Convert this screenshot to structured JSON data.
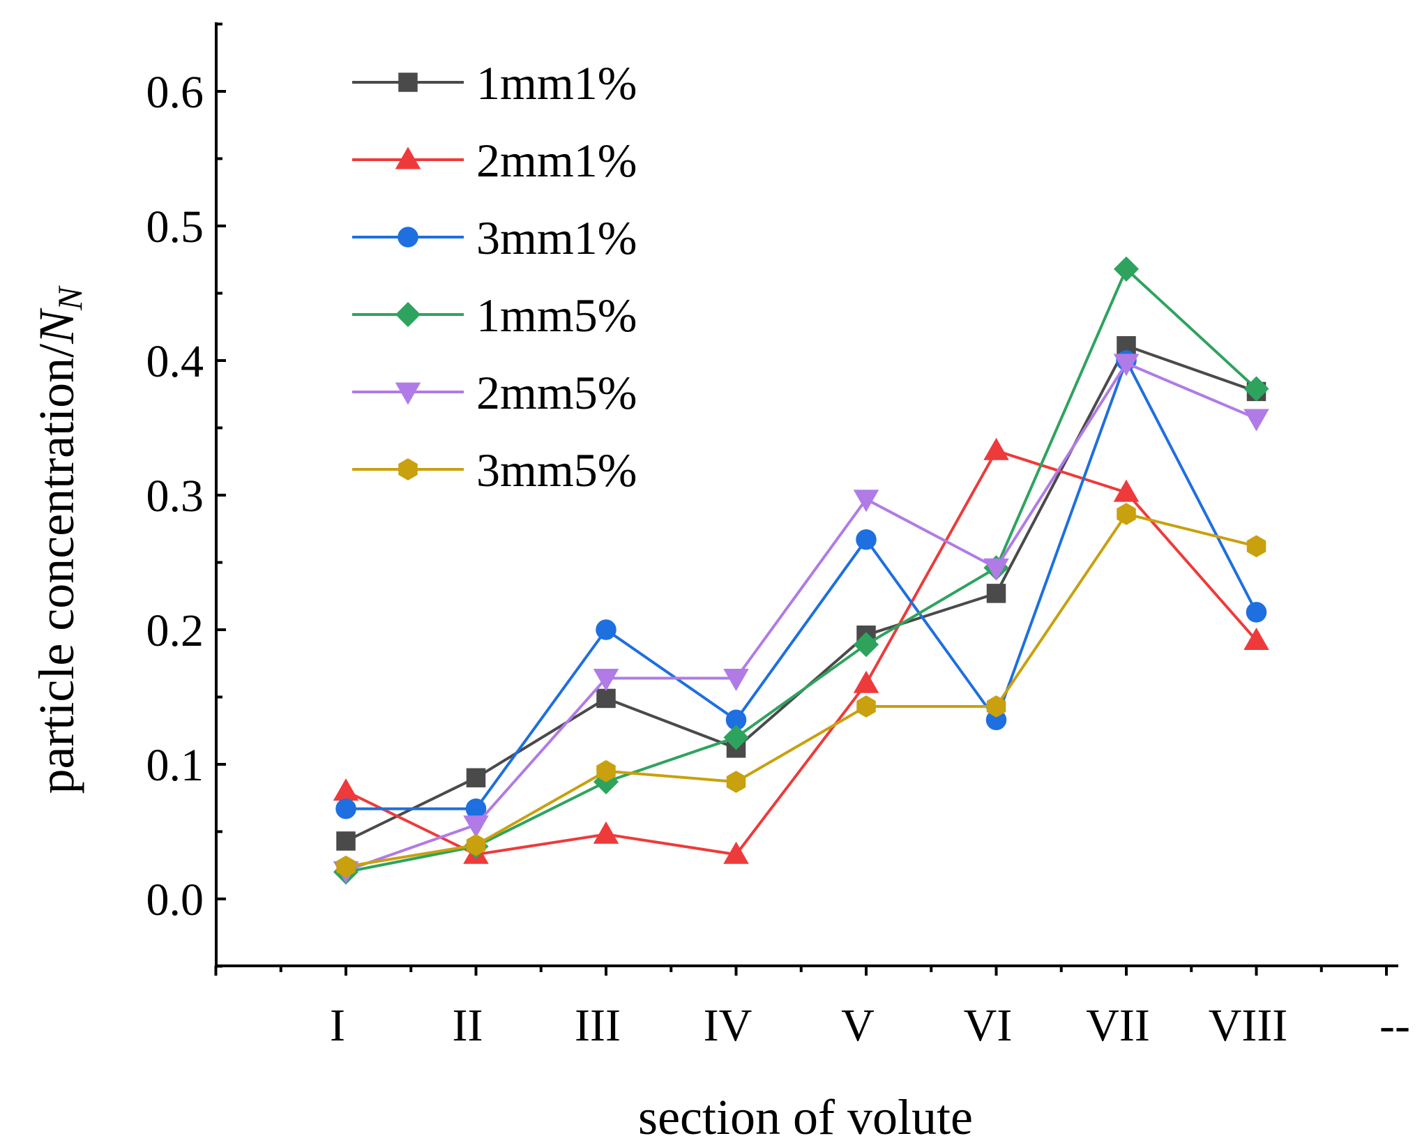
{
  "chart_data": {
    "type": "line",
    "title": "",
    "xlabel": "section of volute",
    "ylabel_main": "particle concentration/",
    "ylabel_italic": "N",
    "ylabel_sub": "N",
    "categories": [
      "I",
      "II",
      "III",
      "IV",
      "V",
      "VI",
      "VII",
      "VIII"
    ],
    "extra_x_tick": "--",
    "ylim": [
      -0.05,
      0.65
    ],
    "yticks": [
      "0.0",
      "0.1",
      "0.2",
      "0.3",
      "0.4",
      "0.5",
      "0.6"
    ],
    "legend_position": "top-left",
    "series": [
      {
        "name": "1mm1%",
        "color": "#4a4a4a",
        "marker": "square",
        "values": [
          0.043,
          0.09,
          0.149,
          0.112,
          0.196,
          0.227,
          0.411,
          0.377
        ]
      },
      {
        "name": "2mm1%",
        "color": "#ee3a3a",
        "marker": "triangle-up",
        "values": [
          0.08,
          0.033,
          0.048,
          0.033,
          0.16,
          0.333,
          0.302,
          0.192
        ]
      },
      {
        "name": "3mm1%",
        "color": "#1e6fe0",
        "marker": "circle",
        "values": [
          0.067,
          0.067,
          0.2,
          0.133,
          0.267,
          0.133,
          0.4,
          0.213
        ]
      },
      {
        "name": "1mm5%",
        "color": "#2ea35e",
        "marker": "diamond",
        "values": [
          0.02,
          0.039,
          0.087,
          0.12,
          0.189,
          0.246,
          0.468,
          0.379
        ]
      },
      {
        "name": "2mm5%",
        "color": "#b07be6",
        "marker": "triangle-down",
        "values": [
          0.021,
          0.055,
          0.164,
          0.164,
          0.297,
          0.246,
          0.398,
          0.357
        ]
      },
      {
        "name": "3mm5%",
        "color": "#c9a00e",
        "marker": "hexagon",
        "values": [
          0.024,
          0.04,
          0.095,
          0.087,
          0.143,
          0.143,
          0.286,
          0.262
        ]
      }
    ]
  }
}
